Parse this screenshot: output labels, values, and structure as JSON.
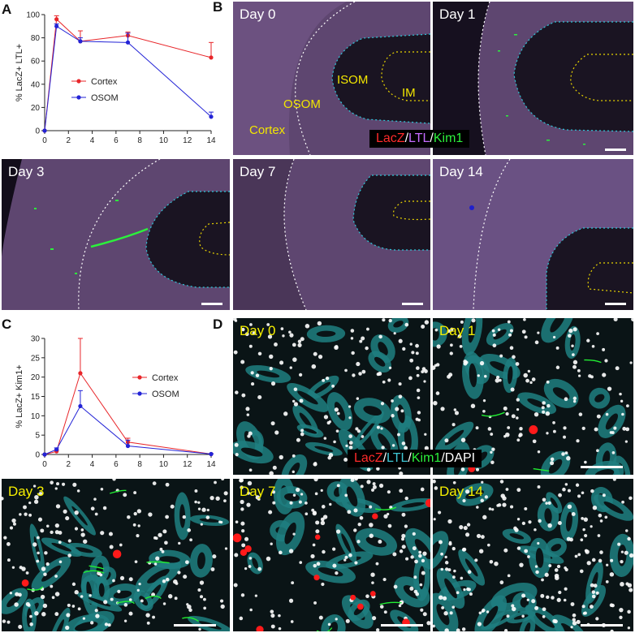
{
  "panel_letters": {
    "a": "A",
    "b": "B",
    "c": "C",
    "d": "D"
  },
  "chart_data": [
    {
      "type": "line",
      "ylabel": "% LacZ+ LTL+",
      "xlabel": "",
      "x": [
        0,
        1,
        3,
        7,
        14
      ],
      "xticks": [
        0,
        2,
        4,
        6,
        8,
        10,
        12,
        14
      ],
      "yticks": [
        0,
        20,
        40,
        60,
        80,
        100
      ],
      "xlim": [
        0,
        14
      ],
      "ylim": [
        0,
        100
      ],
      "legend_position": "center-left",
      "series": [
        {
          "name": "Cortex",
          "color": "#e8262a",
          "values": [
            0,
            96,
            77,
            82,
            63
          ],
          "err": [
            0,
            3,
            9,
            3,
            13
          ]
        },
        {
          "name": "OSOM",
          "color": "#2323d6",
          "values": [
            0,
            90,
            77,
            76,
            12
          ],
          "err": [
            0,
            2,
            3,
            8,
            4
          ]
        }
      ]
    },
    {
      "type": "line",
      "ylabel": "% LacZ+ Kim1+",
      "xlabel": "",
      "x": [
        0,
        1,
        3,
        7,
        14
      ],
      "xticks": [
        0,
        2,
        4,
        6,
        8,
        10,
        12,
        14
      ],
      "yticks": [
        0,
        5,
        10,
        15,
        20,
        25,
        30
      ],
      "xlim": [
        0,
        14
      ],
      "ylim": [
        0,
        30
      ],
      "legend_position": "right",
      "series": [
        {
          "name": "Cortex",
          "color": "#e8262a",
          "values": [
            0,
            0.8,
            21,
            3.2,
            0.1
          ],
          "err": [
            0,
            0.3,
            9,
            1,
            0.1
          ]
        },
        {
          "name": "OSOM",
          "color": "#2323d6",
          "values": [
            0,
            1.3,
            12.5,
            2.2,
            0.1
          ],
          "err": [
            0,
            0.4,
            4,
            1.5,
            0.1
          ]
        }
      ]
    }
  ],
  "panel_b": {
    "days": [
      "Day 0",
      "Day 1",
      "Day 3",
      "Day 7",
      "Day 14"
    ],
    "regions": {
      "isom": "ISOM",
      "im": "IM",
      "osom": "OSOM",
      "cortex": "Cortex"
    },
    "legend": {
      "lacz": "LacZ",
      "sep1": "/",
      "ltl": "LTL",
      "sep2": "/",
      "kim1": "Kim1"
    },
    "colors": {
      "background": "#120d1a",
      "tissue": "#6b4f7c",
      "cortex_boundary": "#ffffff",
      "osom_boundary": "#2fc6d8",
      "im_boundary": "#e8d400"
    }
  },
  "panel_d": {
    "days": [
      "Day 0",
      "Day 1",
      "Day 3",
      "Day 7",
      "Day 14"
    ],
    "legend": {
      "lacz": "LacZ",
      "sep1": "/",
      "ltl": "LTL",
      "sep2": "/",
      "kim1": "Kim1",
      "sep3": "/",
      "dapi": "DAPI"
    },
    "colors": {
      "background": "#0a1416",
      "tubule": "#1f7f80",
      "nucleus": "#ffffff",
      "lacz": "#ff1a1a",
      "kim1": "#22ee33"
    }
  }
}
